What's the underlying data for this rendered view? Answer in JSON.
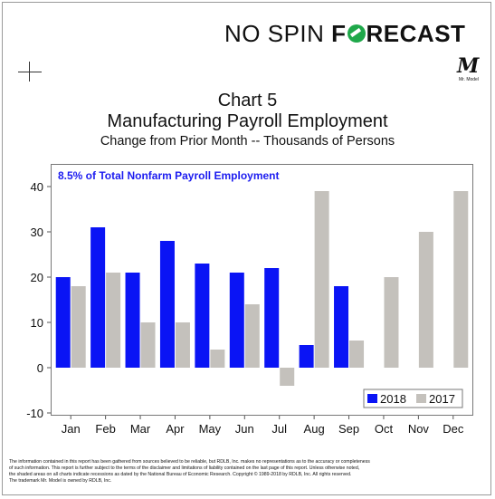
{
  "brand": {
    "part1": "NO SPIN ",
    "part2a": "F",
    "part2b": "RECAST",
    "rdlb": "rdlb",
    "mr_model": "M",
    "mr_model_sub": "Mr. Model"
  },
  "chart_data": {
    "type": "bar",
    "title": "Chart 5",
    "subtitle": "Manufacturing Payroll Employment",
    "subtitle2": "Change from Prior Month -- Thousands of Persons",
    "annotation": "8.5% of Total Nonfarm Payroll Employment",
    "categories": [
      "Jan",
      "Feb",
      "Mar",
      "Apr",
      "May",
      "Jun",
      "Jul",
      "Aug",
      "Sep",
      "Oct",
      "Nov",
      "Dec"
    ],
    "series": [
      {
        "name": "2018",
        "color": "#0a14f5",
        "values": [
          20,
          31,
          21,
          28,
          23,
          21,
          22,
          5,
          18,
          null,
          null,
          null
        ]
      },
      {
        "name": "2017",
        "color": "#c4c1bc",
        "values": [
          18,
          21,
          10,
          10,
          4,
          14,
          -4,
          39,
          6,
          20,
          30,
          39
        ]
      }
    ],
    "ylim": [
      -10,
      40
    ],
    "yticks": [
      40,
      30,
      20,
      10,
      0,
      -10
    ],
    "xlabel": "",
    "ylabel": "",
    "legend_position": "bottom-right",
    "grid": false
  },
  "footer": {
    "line1": "The information contained in this report has been gathered from sources believed to be reliable, but RDLB, Inc. makes no representations as to the accuracy or completeness",
    "line2": "of such information. This report is further subject to the terms of the disclaimer and limitations of liability contained on the last page of this report. Unless otherwise noted,",
    "line3": "the shaded areas on all charts indicate recessions as dated by the National Bureau of Economic Research. Copyright © 1989-2018 by RDLB, Inc. All rights reserved.",
    "line4": "The trademark Mr. Model is owned by RDLB, Inc."
  }
}
